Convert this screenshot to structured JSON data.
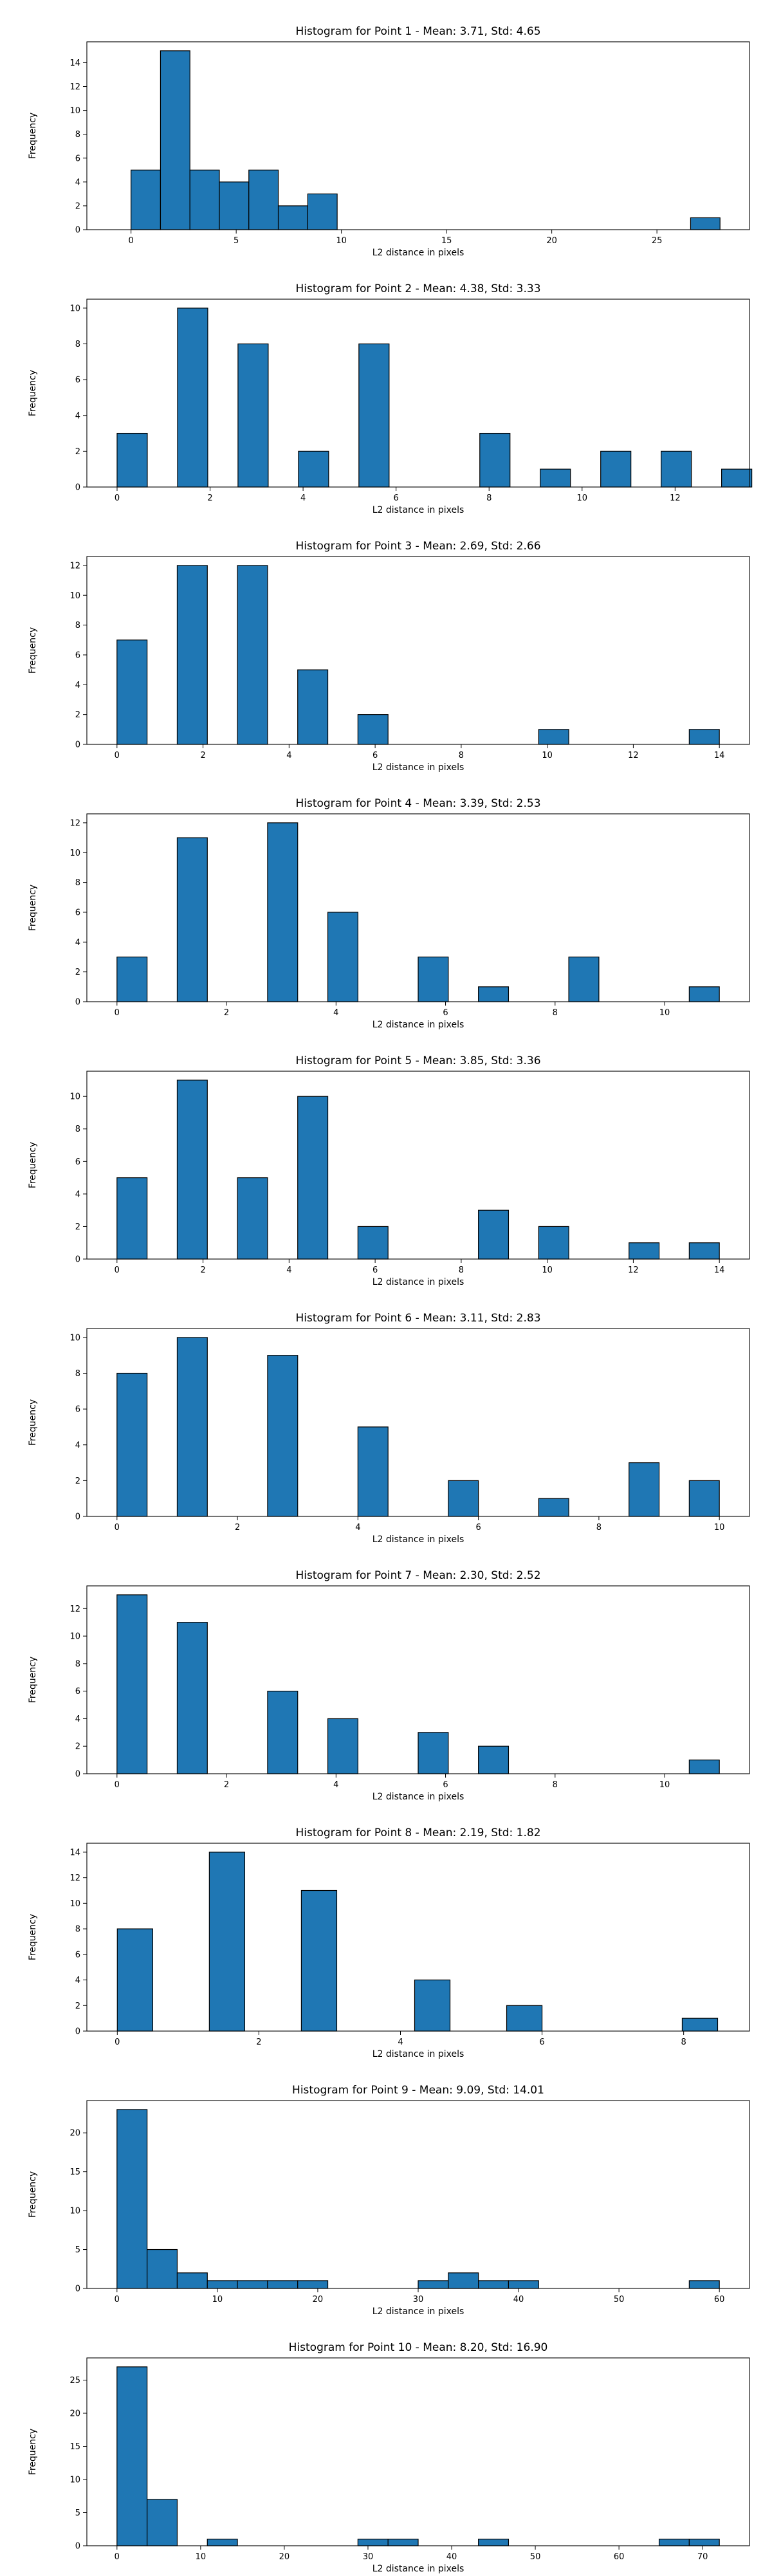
{
  "chart_data": [
    {
      "type": "bar",
      "title": "Histogram for Point 1 - Mean: 3.71, Std: 4.65",
      "xlabel": "L2 distance in pixels",
      "ylabel": "Frequency",
      "xlim": [
        -2.1,
        29.4
      ],
      "ylim": [
        0,
        15.75
      ],
      "xticks": [
        0,
        5,
        10,
        15,
        20,
        25
      ],
      "yticks": [
        0,
        2,
        4,
        6,
        8,
        10,
        12,
        14
      ],
      "bar_color": "#1f77b4",
      "bins": [
        {
          "x0": 0,
          "x1": 1.4,
          "value": 5
        },
        {
          "x0": 1.4,
          "x1": 2.8,
          "value": 15
        },
        {
          "x0": 2.8,
          "x1": 4.2,
          "value": 5
        },
        {
          "x0": 4.2,
          "x1": 5.6,
          "value": 4
        },
        {
          "x0": 5.6,
          "x1": 7.0,
          "value": 5
        },
        {
          "x0": 7.0,
          "x1": 8.4,
          "value": 2
        },
        {
          "x0": 8.4,
          "x1": 9.8,
          "value": 3
        },
        {
          "x0": 26.6,
          "x1": 28.0,
          "value": 1
        }
      ]
    },
    {
      "type": "bar",
      "title": "Histogram for Point 2 - Mean: 4.38, Std: 3.33",
      "xlabel": "L2 distance in pixels",
      "ylabel": "Frequency",
      "xlim": [
        -0.65,
        13.6
      ],
      "ylim": [
        0,
        10.5
      ],
      "xticks": [
        0,
        2,
        4,
        6,
        8,
        10,
        12
      ],
      "yticks": [
        0,
        2,
        4,
        6,
        8,
        10
      ],
      "bar_color": "#1f77b4",
      "bins": [
        {
          "x0": 0,
          "x1": 0.65,
          "value": 3
        },
        {
          "x0": 1.3,
          "x1": 1.95,
          "value": 10
        },
        {
          "x0": 2.6,
          "x1": 3.25,
          "value": 8
        },
        {
          "x0": 3.9,
          "x1": 4.55,
          "value": 2
        },
        {
          "x0": 5.2,
          "x1": 5.85,
          "value": 8
        },
        {
          "x0": 7.8,
          "x1": 8.45,
          "value": 3
        },
        {
          "x0": 9.1,
          "x1": 9.75,
          "value": 1
        },
        {
          "x0": 10.4,
          "x1": 11.05,
          "value": 2
        },
        {
          "x0": 11.7,
          "x1": 12.35,
          "value": 2
        },
        {
          "x0": 13.0,
          "x1": 13.65,
          "value": 1
        }
      ]
    },
    {
      "type": "bar",
      "title": "Histogram for Point 3 - Mean: 2.69, Std: 2.66",
      "xlabel": "L2 distance in pixels",
      "ylabel": "Frequency",
      "xlim": [
        -0.7,
        14.7
      ],
      "ylim": [
        0,
        12.6
      ],
      "xticks": [
        0,
        2,
        4,
        6,
        8,
        10,
        12,
        14
      ],
      "yticks": [
        0,
        2,
        4,
        6,
        8,
        10,
        12
      ],
      "bar_color": "#1f77b4",
      "bins": [
        {
          "x0": 0,
          "x1": 0.7,
          "value": 7
        },
        {
          "x0": 1.4,
          "x1": 2.1,
          "value": 12
        },
        {
          "x0": 2.8,
          "x1": 3.5,
          "value": 12
        },
        {
          "x0": 4.2,
          "x1": 4.9,
          "value": 5
        },
        {
          "x0": 5.6,
          "x1": 6.3,
          "value": 2
        },
        {
          "x0": 9.8,
          "x1": 10.5,
          "value": 1
        },
        {
          "x0": 13.3,
          "x1": 14.0,
          "value": 1
        }
      ]
    },
    {
      "type": "bar",
      "title": "Histogram for Point 4 - Mean: 3.39, Std: 2.53",
      "xlabel": "L2 distance in pixels",
      "ylabel": "Frequency",
      "xlim": [
        -0.55,
        11.55
      ],
      "ylim": [
        0,
        12.6
      ],
      "xticks": [
        0,
        2,
        4,
        6,
        8,
        10
      ],
      "yticks": [
        0,
        2,
        4,
        6,
        8,
        10,
        12
      ],
      "bar_color": "#1f77b4",
      "bins": [
        {
          "x0": 0,
          "x1": 0.55,
          "value": 3
        },
        {
          "x0": 1.1,
          "x1": 1.65,
          "value": 11
        },
        {
          "x0": 2.75,
          "x1": 3.3,
          "value": 12
        },
        {
          "x0": 3.85,
          "x1": 4.4,
          "value": 6
        },
        {
          "x0": 5.5,
          "x1": 6.05,
          "value": 3
        },
        {
          "x0": 6.6,
          "x1": 7.15,
          "value": 1
        },
        {
          "x0": 8.25,
          "x1": 8.8,
          "value": 3
        },
        {
          "x0": 10.45,
          "x1": 11.0,
          "value": 1
        }
      ]
    },
    {
      "type": "bar",
      "title": "Histogram for Point 5 - Mean: 3.85, Std: 3.36",
      "xlabel": "L2 distance in pixels",
      "ylabel": "Frequency",
      "xlim": [
        -0.7,
        14.7
      ],
      "ylim": [
        0,
        11.55
      ],
      "xticks": [
        0,
        2,
        4,
        6,
        8,
        10,
        12,
        14
      ],
      "yticks": [
        0,
        2,
        4,
        6,
        8,
        10
      ],
      "bar_color": "#1f77b4",
      "bins": [
        {
          "x0": 0,
          "x1": 0.7,
          "value": 5
        },
        {
          "x0": 1.4,
          "x1": 2.1,
          "value": 11
        },
        {
          "x0": 2.8,
          "x1": 3.5,
          "value": 5
        },
        {
          "x0": 4.2,
          "x1": 4.9,
          "value": 10
        },
        {
          "x0": 5.6,
          "x1": 6.3,
          "value": 2
        },
        {
          "x0": 8.4,
          "x1": 9.1,
          "value": 3
        },
        {
          "x0": 9.8,
          "x1": 10.5,
          "value": 2
        },
        {
          "x0": 11.9,
          "x1": 12.6,
          "value": 1
        },
        {
          "x0": 13.3,
          "x1": 14.0,
          "value": 1
        }
      ]
    },
    {
      "type": "bar",
      "title": "Histogram for Point 6 - Mean: 3.11, Std: 2.83",
      "xlabel": "L2 distance in pixels",
      "ylabel": "Frequency",
      "xlim": [
        -0.5,
        10.5
      ],
      "ylim": [
        0,
        10.5
      ],
      "xticks": [
        0,
        2,
        4,
        6,
        8,
        10
      ],
      "yticks": [
        0,
        2,
        4,
        6,
        8,
        10
      ],
      "bar_color": "#1f77b4",
      "bins": [
        {
          "x0": 0,
          "x1": 0.5,
          "value": 8
        },
        {
          "x0": 1.0,
          "x1": 1.5,
          "value": 10
        },
        {
          "x0": 2.5,
          "x1": 3.0,
          "value": 9
        },
        {
          "x0": 4.0,
          "x1": 4.5,
          "value": 5
        },
        {
          "x0": 5.5,
          "x1": 6.0,
          "value": 2
        },
        {
          "x0": 7.0,
          "x1": 7.5,
          "value": 1
        },
        {
          "x0": 8.5,
          "x1": 9.0,
          "value": 3
        },
        {
          "x0": 9.5,
          "x1": 10.0,
          "value": 2
        }
      ]
    },
    {
      "type": "bar",
      "title": "Histogram for Point 7 - Mean: 2.30, Std: 2.52",
      "xlabel": "L2 distance in pixels",
      "ylabel": "Frequency",
      "xlim": [
        -0.55,
        11.55
      ],
      "ylim": [
        0,
        13.65
      ],
      "xticks": [
        0,
        2,
        4,
        6,
        8,
        10
      ],
      "yticks": [
        0,
        2,
        4,
        6,
        8,
        10,
        12
      ],
      "bar_color": "#1f77b4",
      "bins": [
        {
          "x0": 0,
          "x1": 0.55,
          "value": 13
        },
        {
          "x0": 1.1,
          "x1": 1.65,
          "value": 11
        },
        {
          "x0": 2.75,
          "x1": 3.3,
          "value": 6
        },
        {
          "x0": 3.85,
          "x1": 4.4,
          "value": 4
        },
        {
          "x0": 5.5,
          "x1": 6.05,
          "value": 3
        },
        {
          "x0": 6.6,
          "x1": 7.15,
          "value": 2
        },
        {
          "x0": 10.45,
          "x1": 11.0,
          "value": 1
        }
      ]
    },
    {
      "type": "bar",
      "title": "Histogram for Point 8 - Mean: 2.19, Std: 1.82",
      "xlabel": "L2 distance in pixels",
      "ylabel": "Frequency",
      "xlim": [
        -0.43,
        8.93
      ],
      "ylim": [
        0,
        14.7
      ],
      "xticks": [
        0,
        2,
        4,
        6,
        8
      ],
      "yticks": [
        0,
        2,
        4,
        6,
        8,
        10,
        12,
        14
      ],
      "bar_color": "#1f77b4",
      "bins": [
        {
          "x0": 0,
          "x1": 0.5,
          "value": 8
        },
        {
          "x0": 1.3,
          "x1": 1.8,
          "value": 14
        },
        {
          "x0": 2.6,
          "x1": 3.1,
          "value": 11
        },
        {
          "x0": 4.2,
          "x1": 4.7,
          "value": 4
        },
        {
          "x0": 5.5,
          "x1": 6.0,
          "value": 2
        },
        {
          "x0": 7.98,
          "x1": 8.48,
          "value": 1
        }
      ]
    },
    {
      "type": "bar",
      "title": "Histogram for Point 9 - Mean: 9.09, Std: 14.01",
      "xlabel": "L2 distance in pixels",
      "ylabel": "Frequency",
      "xlim": [
        -3.0,
        63.0
      ],
      "ylim": [
        0,
        24.15
      ],
      "xticks": [
        0,
        10,
        20,
        30,
        40,
        50,
        60
      ],
      "yticks": [
        0,
        5,
        10,
        15,
        20
      ],
      "bar_color": "#1f77b4",
      "bins": [
        {
          "x0": 0,
          "x1": 3,
          "value": 23
        },
        {
          "x0": 3,
          "x1": 6,
          "value": 5
        },
        {
          "x0": 6,
          "x1": 9,
          "value": 2
        },
        {
          "x0": 9,
          "x1": 12,
          "value": 1
        },
        {
          "x0": 12,
          "x1": 15,
          "value": 1
        },
        {
          "x0": 15,
          "x1": 18,
          "value": 1
        },
        {
          "x0": 18,
          "x1": 21,
          "value": 1
        },
        {
          "x0": 30,
          "x1": 33,
          "value": 1
        },
        {
          "x0": 33,
          "x1": 36,
          "value": 2
        },
        {
          "x0": 36,
          "x1": 39,
          "value": 1
        },
        {
          "x0": 39,
          "x1": 42,
          "value": 1
        },
        {
          "x0": 57,
          "x1": 60,
          "value": 1
        }
      ]
    },
    {
      "type": "bar",
      "title": "Histogram for Point 10 - Mean: 8.20, Std: 16.90",
      "xlabel": "L2 distance in pixels",
      "ylabel": "Frequency",
      "xlim": [
        -3.6,
        75.6
      ],
      "ylim": [
        0,
        28.35
      ],
      "xticks": [
        0,
        10,
        20,
        30,
        40,
        50,
        60,
        70
      ],
      "yticks": [
        0,
        5,
        10,
        15,
        20,
        25
      ],
      "bar_color": "#1f77b4",
      "bins": [
        {
          "x0": 0,
          "x1": 3.6,
          "value": 27
        },
        {
          "x0": 3.6,
          "x1": 7.2,
          "value": 7
        },
        {
          "x0": 10.8,
          "x1": 14.4,
          "value": 1
        },
        {
          "x0": 28.8,
          "x1": 32.4,
          "value": 1
        },
        {
          "x0": 32.4,
          "x1": 36.0,
          "value": 1
        },
        {
          "x0": 43.2,
          "x1": 46.8,
          "value": 1
        },
        {
          "x0": 64.8,
          "x1": 68.4,
          "value": 1
        },
        {
          "x0": 68.4,
          "x1": 72.0,
          "value": 1
        }
      ]
    }
  ]
}
